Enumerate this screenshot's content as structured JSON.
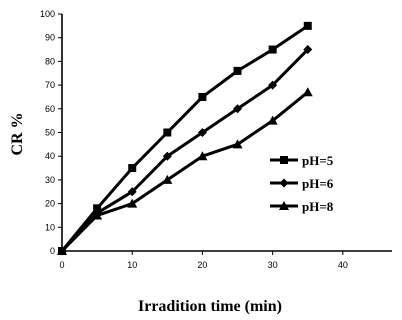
{
  "chart_data": {
    "type": "line",
    "title": "",
    "xlabel": "Irradition time (min)",
    "ylabel": "CR %",
    "xlim": [
      0,
      47
    ],
    "ylim": [
      0,
      100
    ],
    "x_ticks": [
      "0",
      "10",
      "20",
      "30",
      "40"
    ],
    "y_ticks": [
      "0",
      "10",
      "20",
      "30",
      "40",
      "50",
      "60",
      "70",
      "80",
      "90",
      "100"
    ],
    "grid": false,
    "legend_position": "right",
    "series": [
      {
        "name": "pH=5",
        "marker": "square",
        "x": [
          0,
          5,
          10,
          15,
          20,
          25,
          30,
          35
        ],
        "y": [
          0,
          18,
          35,
          50,
          65,
          76,
          85,
          95
        ]
      },
      {
        "name": "pH=6",
        "marker": "diamond",
        "x": [
          0,
          5,
          10,
          15,
          20,
          25,
          30,
          35
        ],
        "y": [
          0,
          16,
          25,
          40,
          50,
          60,
          70,
          85
        ]
      },
      {
        "name": "pH=8",
        "marker": "triangle",
        "x": [
          0,
          5,
          10,
          15,
          20,
          25,
          30,
          35
        ],
        "y": [
          0,
          15,
          20,
          30,
          40,
          45,
          55,
          67
        ]
      }
    ],
    "colors": {
      "series": "#000000"
    }
  }
}
